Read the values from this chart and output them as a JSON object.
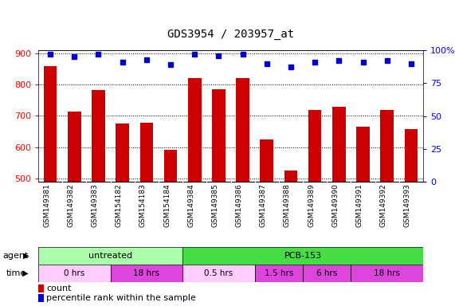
{
  "title": "GDS3954 / 203957_at",
  "samples": [
    "GSM149381",
    "GSM149382",
    "GSM149383",
    "GSM154182",
    "GSM154183",
    "GSM154184",
    "GSM149384",
    "GSM149385",
    "GSM149386",
    "GSM149387",
    "GSM149388",
    "GSM149389",
    "GSM149390",
    "GSM149391",
    "GSM149392",
    "GSM149393"
  ],
  "counts": [
    858,
    715,
    782,
    675,
    678,
    592,
    822,
    785,
    820,
    625,
    525,
    718,
    730,
    665,
    718,
    657
  ],
  "percentile_vals": [
    97,
    95,
    97,
    91,
    93,
    89,
    97,
    96,
    97,
    90,
    87,
    91,
    92,
    91,
    92,
    90
  ],
  "bar_color": "#cc0000",
  "dot_color": "#0000cc",
  "ylim_left": [
    490,
    910
  ],
  "ylim_right": [
    0,
    100
  ],
  "yticks_left": [
    500,
    600,
    700,
    800,
    900
  ],
  "yticks_right": [
    0,
    25,
    50,
    75,
    100
  ],
  "agent_groups": [
    {
      "label": "untreated",
      "start": 0,
      "end": 6,
      "color": "#aaffaa"
    },
    {
      "label": "PCB-153",
      "start": 6,
      "end": 16,
      "color": "#44dd44"
    }
  ],
  "time_groups": [
    {
      "label": "0 hrs",
      "start": 0,
      "end": 3,
      "color": "#ffccff"
    },
    {
      "label": "18 hrs",
      "start": 3,
      "end": 6,
      "color": "#dd44dd"
    },
    {
      "label": "0.5 hrs",
      "start": 6,
      "end": 9,
      "color": "#ffccff"
    },
    {
      "label": "1.5 hrs",
      "start": 9,
      "end": 11,
      "color": "#dd44dd"
    },
    {
      "label": "6 hrs",
      "start": 11,
      "end": 13,
      "color": "#dd44dd"
    },
    {
      "label": "18 hrs",
      "start": 13,
      "end": 16,
      "color": "#dd44dd"
    }
  ],
  "xtick_bg": "#c8c8c8",
  "chart_bg": "#ffffff",
  "fig_bg": "#ffffff"
}
